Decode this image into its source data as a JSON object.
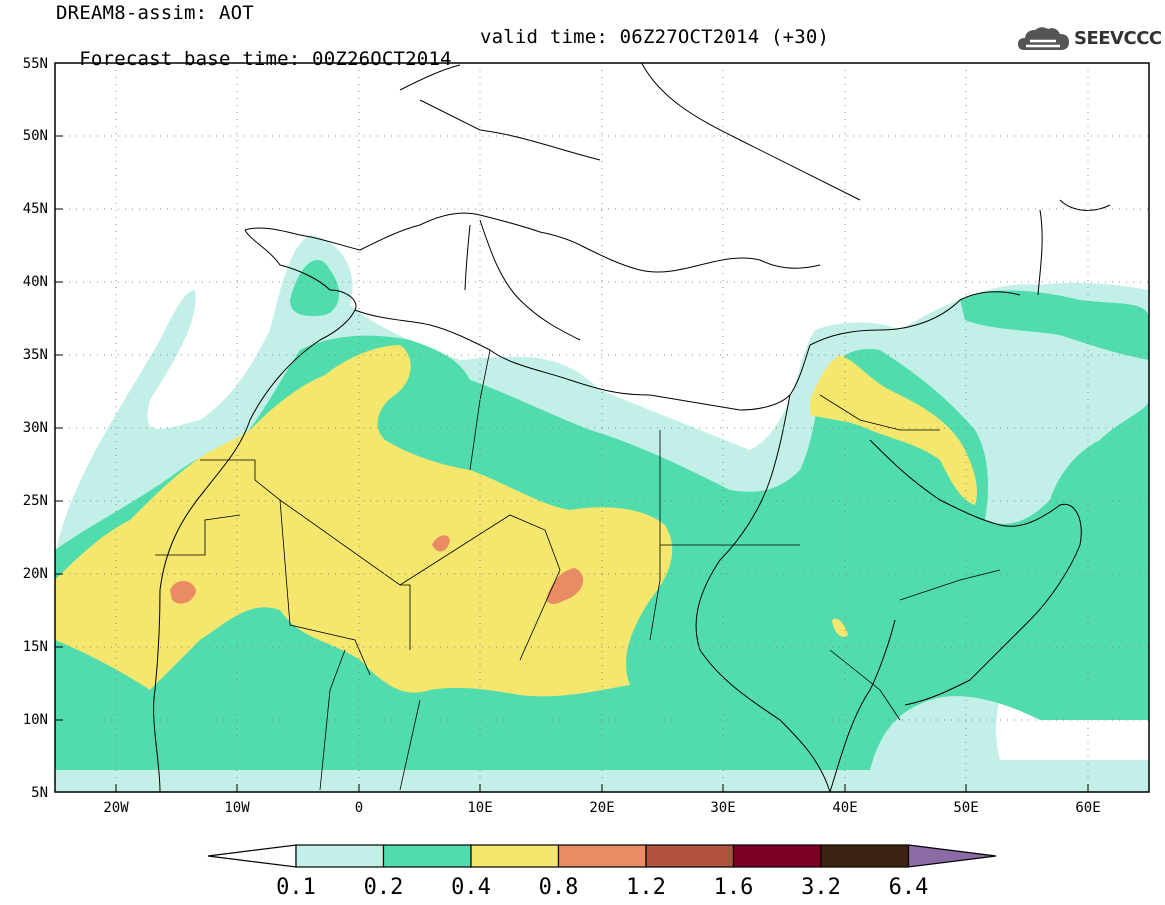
{
  "title": {
    "line1": "DREAM8-assim: AOT",
    "line2_base": "Forecast base time: 00Z26OCT2014",
    "line2_valid": "valid time: 06Z27OCT2014 (+30)"
  },
  "logo": {
    "text": "SEEVCCC",
    "icon": "cloud-logo-icon"
  },
  "map": {
    "lon_range": [
      -25,
      65
    ],
    "lat_range": [
      5,
      55
    ],
    "lat_ticks": [
      "5N",
      "10N",
      "15N",
      "20N",
      "25N",
      "30N",
      "35N",
      "40N",
      "45N",
      "50N",
      "55N"
    ],
    "lon_ticks": [
      "20W",
      "10W",
      "0",
      "10E",
      "20E",
      "30E",
      "40E",
      "50E",
      "60E"
    ],
    "grid": "dotted"
  },
  "colorbar": {
    "labels": [
      "0.1",
      "0.2",
      "0.4",
      "0.8",
      "1.2",
      "1.6",
      "3.2",
      "6.4"
    ],
    "colors": [
      "#c2efe8",
      "#50dcac",
      "#f5e66e",
      "#e98c64",
      "#b0503e",
      "#7c0026",
      "#3d2313",
      "#8c6aa6"
    ],
    "under_color": "#ffffff"
  }
}
